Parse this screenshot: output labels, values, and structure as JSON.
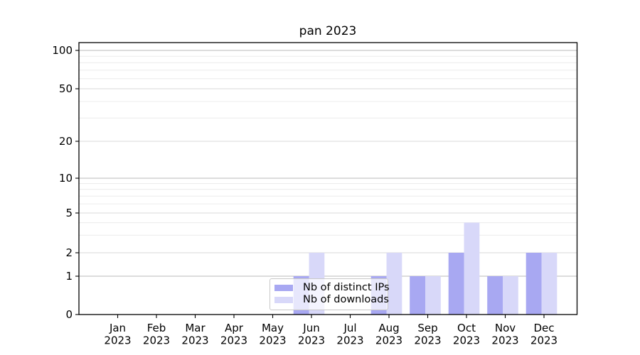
{
  "chart_data": {
    "type": "bar",
    "title": "pan 2023",
    "categories": [
      "Jan\n2023",
      "Feb\n2023",
      "Mar\n2023",
      "Apr\n2023",
      "May\n2023",
      "Jun\n2023",
      "Jul\n2023",
      "Aug\n2023",
      "Sep\n2023",
      "Oct\n2023",
      "Nov\n2023",
      "Dec\n2023"
    ],
    "series": [
      {
        "name": "Nb of distinct IPs",
        "color": "#a8a8f2",
        "values": [
          0,
          0,
          0,
          0,
          0,
          1,
          0,
          1,
          1,
          2,
          1,
          2
        ]
      },
      {
        "name": "Nb of downloads",
        "color": "#d8d8f9",
        "values": [
          0,
          0,
          0,
          0,
          0,
          2,
          0,
          2,
          1,
          4,
          1,
          2
        ]
      }
    ],
    "yaxis": {
      "scale": "symlog",
      "ticks": [
        0,
        1,
        2,
        5,
        10,
        20,
        50,
        100
      ],
      "major_grid_values": [
        1,
        10,
        100
      ],
      "labeled_minor_grid_values": [
        2,
        5,
        20,
        50
      ],
      "minor_grid_values": [
        3,
        4,
        6,
        7,
        8,
        9,
        30,
        40,
        60,
        70,
        80,
        90
      ],
      "ylim": [
        0,
        115
      ]
    },
    "xlabel": "",
    "ylabel": "",
    "legend": {
      "location": "lower center",
      "entries": [
        "Nb of distinct IPs",
        "Nb of downloads"
      ]
    },
    "grid": true,
    "colors": {
      "background": "#ffffff",
      "axis": "#000000",
      "major_grid": "#b9b9b9",
      "labeled_minor_grid": "#d9d9d9",
      "minor_grid": "#ececec"
    }
  }
}
